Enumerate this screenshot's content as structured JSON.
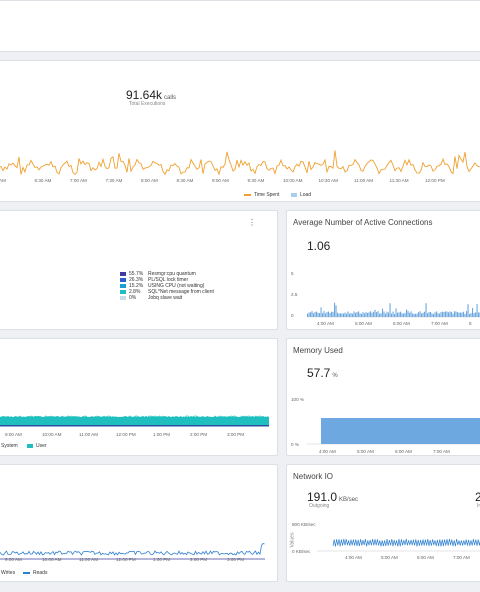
{
  "executions": {
    "value": "91.64k",
    "unit": "calls",
    "label": "Total Executions",
    "x_ticks": [
      "AM",
      "6:30 AM",
      "7:00 AM",
      "7:30 AM",
      "8:00 AM",
      "8:30 AM",
      "9:00 AM",
      "9:30 AM",
      "10:00 AM",
      "10:30 AM",
      "11:00 AM",
      "11:30 AM",
      "12:00 PM"
    ],
    "legend": {
      "time_spent": "Time Spent",
      "load": "Load"
    },
    "colors": {
      "time_spent": "#f0a030",
      "load": "#a8cdf0"
    }
  },
  "wait_events": {
    "menu_icon": "kebab-icon",
    "items": [
      {
        "pct": "55.7%",
        "label": "Resmgr:cpu quantum",
        "color": "#3d3d9e"
      },
      {
        "pct": "26.3%",
        "label": "PL/SQL lock timer",
        "color": "#2d5fc8"
      },
      {
        "pct": "15.2%",
        "label": "USING CPU (not waiting)",
        "color": "#1a9fd0"
      },
      {
        "pct": "2.8%",
        "label": "SQL*Net message from client",
        "color": "#1fbfbf"
      },
      {
        "pct": "0%",
        "label": "Jobq slave wait",
        "color": "#c9dde8"
      }
    ]
  },
  "connections": {
    "title": "Average Number of Active Connections",
    "value": "1.06",
    "y_ticks": [
      "5",
      "2.5",
      "0"
    ],
    "x_ticks": [
      "4:00 AM",
      "5:00 AM",
      "6:00 AM",
      "7:00 AM",
      "8"
    ]
  },
  "cpu": {
    "x_ticks": [
      "9:00 AM",
      "10:00 AM",
      "11:00 AM",
      "12:00 PM",
      "1:00 PM",
      "2:00 PM",
      "3:00 PM"
    ],
    "legend": {
      "system": "System",
      "user": "User"
    },
    "colors": {
      "system": "#2d4fa0",
      "user": "#1fbfbf"
    }
  },
  "memory": {
    "title": "Memory Used",
    "value": "57.7",
    "unit": "%",
    "y_ticks": [
      "100 %",
      "0 %"
    ],
    "x_ticks": [
      "4:00 AM",
      "5:00 AM",
      "6:00 AM",
      "7:00 AM"
    ]
  },
  "disk": {
    "x_ticks": [
      "9:00 AM",
      "10:00 AM",
      "11:00 AM",
      "12:00 PM",
      "1:00 PM",
      "2:00 PM",
      "3:00 PM"
    ],
    "legend": {
      "writes": "Writes",
      "reads": "Reads"
    },
    "colors": {
      "writes": "#3d3d9e",
      "reads": "#2d7fd0"
    }
  },
  "network": {
    "title": "Network IO",
    "outgoing_value": "191.0",
    "outgoing_unit": "KB/sec",
    "outgoing_label": "Outgoing",
    "incoming_value_fragment": "2",
    "incoming_label_fragment": "In",
    "y_axis_label": "Values",
    "y_ticks": [
      "800 KB/sec",
      "0 KB/sec"
    ],
    "x_ticks": [
      "4:00 AM",
      "5:00 AM",
      "6:00 AM",
      "7:00 AM"
    ]
  }
}
